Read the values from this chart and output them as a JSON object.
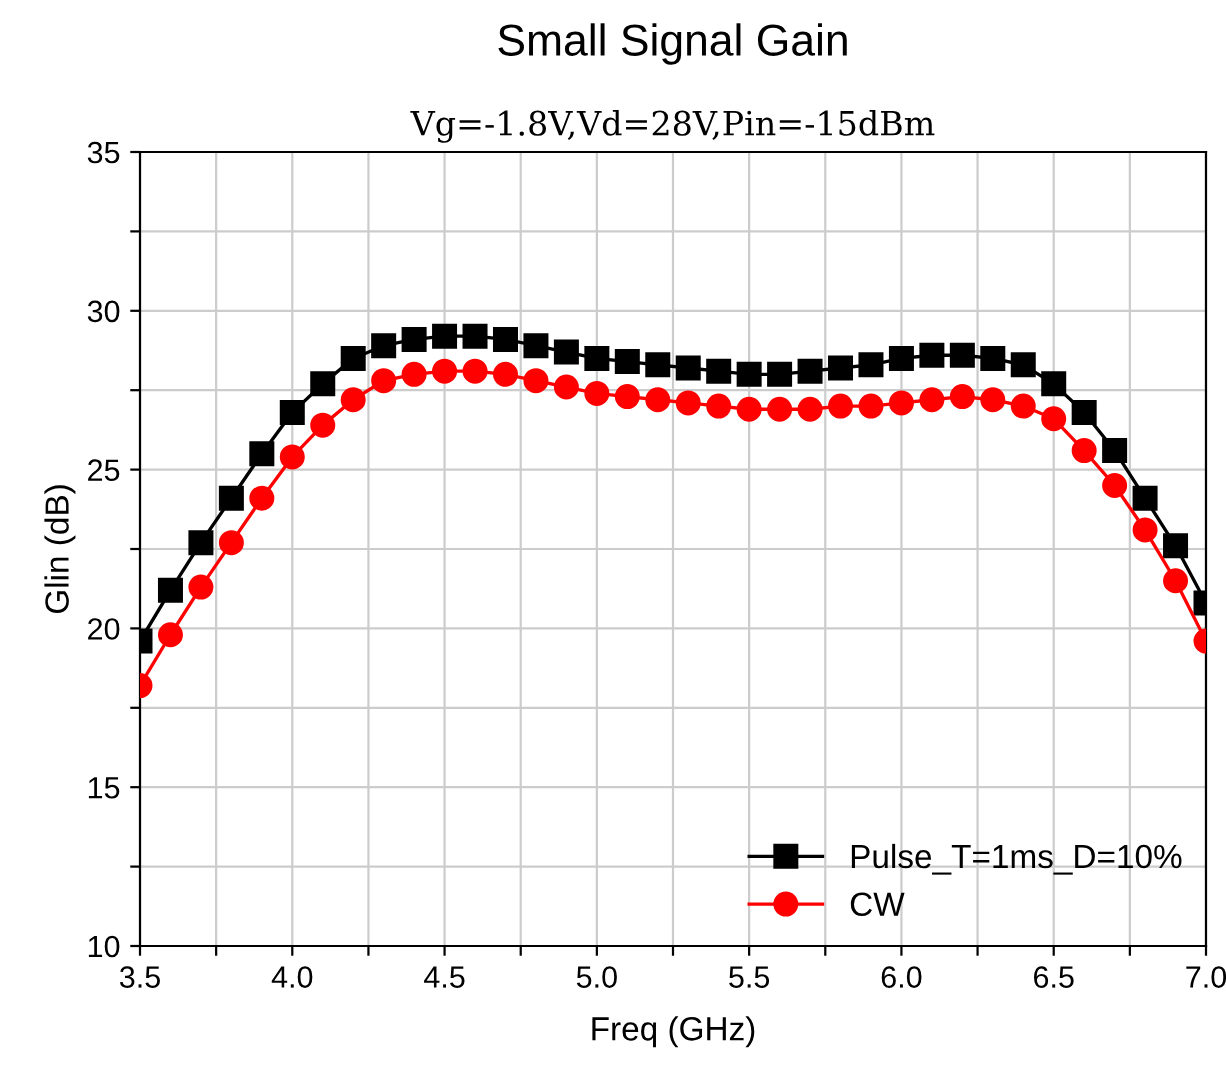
{
  "chart_data": {
    "type": "line",
    "title": "Small Signal Gain",
    "subtitle": "Vg=-1.8V,Vd=28V,Pin=-15dBm",
    "xlabel": "Freq (GHz)",
    "ylabel": "Glin (dB)",
    "x": [
      3.5,
      3.6,
      3.7,
      3.8,
      3.9,
      4.0,
      4.1,
      4.2,
      4.3,
      4.4,
      4.5,
      4.6,
      4.7,
      4.8,
      4.9,
      5.0,
      5.1,
      5.2,
      5.3,
      5.4,
      5.5,
      5.6,
      5.7,
      5.8,
      5.9,
      6.0,
      6.1,
      6.2,
      6.3,
      6.4,
      6.5,
      6.6,
      6.7,
      6.8,
      6.9,
      7.0
    ],
    "series": [
      {
        "name": "Pulse_T=1ms_D=10%",
        "color": "#000000",
        "marker": "square",
        "values": [
          19.6,
          21.2,
          22.7,
          24.1,
          25.5,
          26.8,
          27.7,
          28.5,
          28.9,
          29.1,
          29.2,
          29.2,
          29.1,
          28.9,
          28.7,
          28.5,
          28.4,
          28.3,
          28.2,
          28.1,
          28.0,
          28.0,
          28.1,
          28.2,
          28.3,
          28.5,
          28.6,
          28.6,
          28.5,
          28.3,
          27.7,
          26.8,
          25.6,
          24.1,
          22.6,
          20.8
        ]
      },
      {
        "name": "CW",
        "color": "#ff0000",
        "marker": "circle",
        "values": [
          18.2,
          19.8,
          21.3,
          22.7,
          24.1,
          25.4,
          26.4,
          27.2,
          27.8,
          28.0,
          28.1,
          28.1,
          28.0,
          27.8,
          27.6,
          27.4,
          27.3,
          27.2,
          27.1,
          27.0,
          26.9,
          26.9,
          26.9,
          27.0,
          27.0,
          27.1,
          27.2,
          27.3,
          27.2,
          27.0,
          26.6,
          25.6,
          24.5,
          23.1,
          21.5,
          19.6
        ]
      }
    ],
    "xlim": [
      3.5,
      7.0
    ],
    "ylim": [
      10,
      35
    ],
    "xticks": [
      3.5,
      {
        "value": 3.75,
        "label": null
      },
      {
        "value": 4,
        "label": "4.0"
      },
      {
        "value": 4.25,
        "label": null
      },
      4.5,
      {
        "value": 4.75,
        "label": null
      },
      {
        "value": 5,
        "label": "5.0"
      },
      {
        "value": 5.25,
        "label": null
      },
      5.5,
      {
        "value": 5.75,
        "label": null
      },
      {
        "value": 6,
        "label": "6.0"
      },
      {
        "value": 6.25,
        "label": null
      },
      6.5,
      {
        "value": 6.75,
        "label": null
      },
      {
        "value": 7,
        "label": "7.0"
      }
    ],
    "yticks": [
      10,
      {
        "value": 12.5,
        "label": null
      },
      15,
      {
        "value": 17.5,
        "label": null
      },
      20,
      {
        "value": 22.5,
        "label": null
      },
      25,
      {
        "value": 27.5,
        "label": null
      },
      30,
      {
        "value": 32.5,
        "label": null
      },
      35
    ],
    "grid": true,
    "legend": "bottom right",
    "line_style": "solid"
  }
}
